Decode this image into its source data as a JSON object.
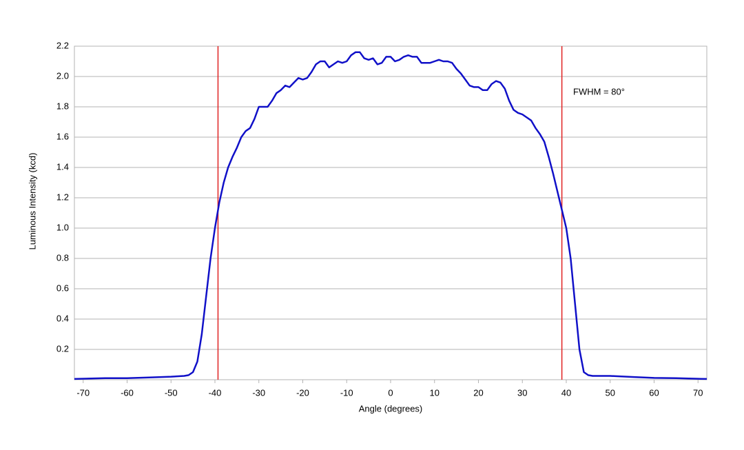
{
  "chart_data": {
    "type": "line",
    "x_label": "Angle (degrees)",
    "y_label": "Luminous Intensity (kcd)",
    "annotation": "FWHM = 80°",
    "xlim": [
      -72,
      72
    ],
    "xticks": [
      -70,
      -60,
      -50,
      -40,
      -30,
      -20,
      -10,
      0,
      10,
      20,
      30,
      40,
      50,
      60,
      70
    ],
    "ylim": [
      0,
      2.2
    ],
    "yticks": [
      0.2,
      0.4,
      0.6,
      0.8,
      {
        "value": 1.0,
        "label": "1.0"
      },
      1.2,
      1.4,
      1.6,
      1.8,
      {
        "value": 2.0,
        "label": "2.0"
      },
      2.2
    ],
    "grid": true,
    "vlines": [
      -39.3,
      39
    ],
    "vline_color": "#e02020",
    "x": [
      -72,
      -65,
      -60,
      -55,
      -50,
      -47,
      -46,
      -45,
      -44,
      -43,
      -42,
      -41,
      -40,
      -39,
      -38,
      -37,
      -36,
      -35,
      -34,
      -33,
      -32,
      -31,
      -30,
      -29,
      -28,
      -27,
      -26,
      -25,
      -24,
      -23,
      -22,
      -21,
      -20,
      -19,
      -18,
      -17,
      -16,
      -15,
      -14,
      -13,
      -12,
      -11,
      -10,
      -9,
      -8,
      -7,
      -6,
      -5,
      -4,
      -3,
      -2,
      -1,
      0,
      1,
      2,
      3,
      4,
      5,
      6,
      7,
      8,
      9,
      10,
      11,
      12,
      13,
      14,
      15,
      16,
      17,
      18,
      19,
      20,
      21,
      22,
      23,
      24,
      25,
      26,
      27,
      28,
      29,
      30,
      31,
      32,
      33,
      34,
      35,
      36,
      37,
      38,
      39,
      40,
      41,
      42,
      43,
      44,
      45,
      46,
      48,
      50,
      55,
      60,
      65,
      70,
      72
    ],
    "series": [
      {
        "name": "Luminous Intensity",
        "color": "#1010c8",
        "values": [
          0.005,
          0.01,
          0.01,
          0.015,
          0.02,
          0.025,
          0.03,
          0.05,
          0.12,
          0.3,
          0.55,
          0.8,
          1.0,
          1.17,
          1.3,
          1.4,
          1.47,
          1.53,
          1.6,
          1.64,
          1.66,
          1.72,
          1.8,
          1.8,
          1.8,
          1.84,
          1.89,
          1.91,
          1.94,
          1.93,
          1.96,
          1.99,
          1.98,
          1.99,
          2.03,
          2.08,
          2.1,
          2.1,
          2.06,
          2.08,
          2.1,
          2.09,
          2.1,
          2.14,
          2.16,
          2.16,
          2.12,
          2.11,
          2.12,
          2.08,
          2.09,
          2.13,
          2.13,
          2.1,
          2.11,
          2.13,
          2.14,
          2.13,
          2.13,
          2.09,
          2.09,
          2.09,
          2.1,
          2.11,
          2.1,
          2.1,
          2.09,
          2.05,
          2.02,
          1.98,
          1.94,
          1.93,
          1.93,
          1.91,
          1.91,
          1.95,
          1.97,
          1.96,
          1.92,
          1.84,
          1.78,
          1.76,
          1.75,
          1.73,
          1.71,
          1.66,
          1.62,
          1.57,
          1.47,
          1.36,
          1.24,
          1.12,
          1.0,
          0.8,
          0.5,
          0.2,
          0.05,
          0.03,
          0.025,
          0.025,
          0.025,
          0.018,
          0.012,
          0.01,
          0.006,
          0.005
        ]
      }
    ]
  }
}
